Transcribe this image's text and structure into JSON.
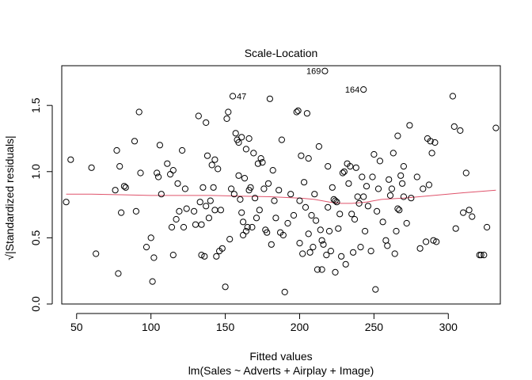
{
  "chart_data": {
    "type": "scatter",
    "title": "Scale-Location",
    "xlabel": "Fitted values",
    "xlabel_sub": "lm(Sales ~ Adverts + Airplay + Image)",
    "ylabel": "√|Standardized residuals|",
    "xlim": [
      40,
      335
    ],
    "ylim": [
      0.0,
      1.8
    ],
    "xticks": [
      50,
      100,
      150,
      200,
      250,
      300
    ],
    "yticks": [
      0.0,
      0.5,
      1.0,
      1.5
    ],
    "xtick_labels": [
      "50",
      "100",
      "150",
      "200",
      "250",
      "300"
    ],
    "ytick_labels": [
      "0.0",
      "0.5",
      "1.0",
      "1.5"
    ],
    "grid": false,
    "point_color": "#000000",
    "smoother_color": "#df536b",
    "labeled_points": [
      {
        "label": "169",
        "x": 217,
        "y": 1.76
      },
      {
        "label": "164",
        "x": 243,
        "y": 1.62
      },
      {
        "label": "47",
        "x": 155,
        "y": 1.57
      }
    ],
    "points": [
      [
        43,
        0.77
      ],
      [
        46,
        1.09
      ],
      [
        60,
        1.03
      ],
      [
        63,
        0.38
      ],
      [
        76,
        0.86
      ],
      [
        77,
        1.16
      ],
      [
        78,
        0.23
      ],
      [
        79,
        1.04
      ],
      [
        80,
        0.69
      ],
      [
        82,
        0.89
      ],
      [
        83,
        0.88
      ],
      [
        89,
        1.23
      ],
      [
        90,
        0.7
      ],
      [
        92,
        1.45
      ],
      [
        93,
        0.99
      ],
      [
        97,
        0.43
      ],
      [
        100,
        0.5
      ],
      [
        101,
        0.17
      ],
      [
        102,
        0.35
      ],
      [
        104,
        0.99
      ],
      [
        105,
        0.96
      ],
      [
        106,
        1.2
      ],
      [
        107,
        0.83
      ],
      [
        111,
        1.06
      ],
      [
        113,
        0.98
      ],
      [
        114,
        0.58
      ],
      [
        115,
        0.37
      ],
      [
        115,
        1.01
      ],
      [
        117,
        0.64
      ],
      [
        118,
        0.91
      ],
      [
        119,
        0.7
      ],
      [
        121,
        1.16
      ],
      [
        122,
        0.58
      ],
      [
        123,
        0.87
      ],
      [
        124,
        0.72
      ],
      [
        129,
        0.7
      ],
      [
        130,
        0.6
      ],
      [
        132,
        1.42
      ],
      [
        133,
        0.77
      ],
      [
        134,
        0.37
      ],
      [
        134,
        0.6
      ],
      [
        135,
        0.88
      ],
      [
        136,
        0.36
      ],
      [
        137,
        1.37
      ],
      [
        137,
        0.74
      ],
      [
        138,
        1.12
      ],
      [
        139,
        0.65
      ],
      [
        140,
        0.78
      ],
      [
        141,
        1.05
      ],
      [
        142,
        0.88
      ],
      [
        143,
        0.71
      ],
      [
        143,
        1.09
      ],
      [
        144,
        0.36
      ],
      [
        145,
        1.02
      ],
      [
        146,
        0.4
      ],
      [
        147,
        0.71
      ],
      [
        148,
        0.42
      ],
      [
        150,
        0.13
      ],
      [
        151,
        1.4
      ],
      [
        152,
        1.45
      ],
      [
        153,
        0.49
      ],
      [
        154,
        0.87
      ],
      [
        155,
        1.57
      ],
      [
        156,
        0.83
      ],
      [
        157,
        1.29
      ],
      [
        158,
        1.24
      ],
      [
        159,
        0.97
      ],
      [
        159,
        1.22
      ],
      [
        160,
        0.79
      ],
      [
        161,
        1.26
      ],
      [
        161,
        0.69
      ],
      [
        162,
        0.52
      ],
      [
        162,
        0.62
      ],
      [
        163,
        0.95
      ],
      [
        164,
        0.55
      ],
      [
        164,
        1.17
      ],
      [
        165,
        0.58
      ],
      [
        166,
        1.25
      ],
      [
        166,
        0.86
      ],
      [
        167,
        0.88
      ],
      [
        168,
        0.58
      ],
      [
        169,
        1.14
      ],
      [
        170,
        0.8
      ],
      [
        171,
        0.65
      ],
      [
        172,
        1.06
      ],
      [
        173,
        0.71
      ],
      [
        174,
        1.1
      ],
      [
        175,
        1.07
      ],
      [
        176,
        0.87
      ],
      [
        177,
        0.56
      ],
      [
        178,
        0.54
      ],
      [
        179,
        0.91
      ],
      [
        180,
        1.55
      ],
      [
        181,
        0.45
      ],
      [
        182,
        1.01
      ],
      [
        183,
        0.78
      ],
      [
        184,
        0.65
      ],
      [
        186,
        0.86
      ],
      [
        187,
        0.54
      ],
      [
        188,
        1.24
      ],
      [
        189,
        0.52
      ],
      [
        190,
        0.09
      ],
      [
        192,
        0.61
      ],
      [
        194,
        0.83
      ],
      [
        196,
        0.67
      ],
      [
        198,
        1.45
      ],
      [
        199,
        1.46
      ],
      [
        200,
        0.78
      ],
      [
        200,
        0.46
      ],
      [
        201,
        1.12
      ],
      [
        202,
        0.38
      ],
      [
        203,
        0.92
      ],
      [
        204,
        0.73
      ],
      [
        205,
        1.44
      ],
      [
        206,
        0.53
      ],
      [
        206,
        1.1
      ],
      [
        207,
        0.39
      ],
      [
        208,
        0.67
      ],
      [
        209,
        0.43
      ],
      [
        210,
        0.83
      ],
      [
        211,
        0.63
      ],
      [
        212,
        0.26
      ],
      [
        213,
        1.19
      ],
      [
        214,
        0.56
      ],
      [
        215,
        0.26
      ],
      [
        215,
        0.48
      ],
      [
        216,
        0.45
      ],
      [
        217,
        1.76
      ],
      [
        218,
        0.37
      ],
      [
        219,
        1.04
      ],
      [
        219,
        0.73
      ],
      [
        220,
        0.55
      ],
      [
        221,
        0.4
      ],
      [
        222,
        0.88
      ],
      [
        223,
        0.79
      ],
      [
        224,
        0.24
      ],
      [
        224,
        0.78
      ],
      [
        225,
        0.77
      ],
      [
        226,
        0.57
      ],
      [
        227,
        0.68
      ],
      [
        228,
        0.36
      ],
      [
        229,
        0.99
      ],
      [
        230,
        1.0
      ],
      [
        231,
        0.3
      ],
      [
        232,
        1.06
      ],
      [
        233,
        0.91
      ],
      [
        234,
        1.04
      ],
      [
        235,
        0.68
      ],
      [
        236,
        0.39
      ],
      [
        237,
        0.64
      ],
      [
        238,
        1.03
      ],
      [
        239,
        0.81
      ],
      [
        240,
        0.76
      ],
      [
        241,
        0.43
      ],
      [
        242,
        0.96
      ],
      [
        243,
        1.62
      ],
      [
        243,
        0.81
      ],
      [
        244,
        0.55
      ],
      [
        245,
        0.89
      ],
      [
        246,
        0.74
      ],
      [
        248,
        0.4
      ],
      [
        249,
        0.96
      ],
      [
        250,
        1.13
      ],
      [
        251,
        0.11
      ],
      [
        252,
        0.7
      ],
      [
        253,
        0.87
      ],
      [
        254,
        1.08
      ],
      [
        256,
        0.62
      ],
      [
        258,
        0.48
      ],
      [
        259,
        0.44
      ],
      [
        260,
        0.94
      ],
      [
        261,
        0.82
      ],
      [
        262,
        0.87
      ],
      [
        263,
        1.14
      ],
      [
        264,
        0.38
      ],
      [
        265,
        0.55
      ],
      [
        266,
        0.72
      ],
      [
        266,
        1.27
      ],
      [
        267,
        0.71
      ],
      [
        268,
        0.97
      ],
      [
        269,
        0.91
      ],
      [
        270,
        1.04
      ],
      [
        270,
        0.81
      ],
      [
        272,
        0.61
      ],
      [
        274,
        1.35
      ],
      [
        275,
        0.8
      ],
      [
        279,
        0.96
      ],
      [
        281,
        0.42
      ],
      [
        283,
        0.87
      ],
      [
        285,
        0.47
      ],
      [
        286,
        1.25
      ],
      [
        287,
        0.9
      ],
      [
        288,
        1.23
      ],
      [
        289,
        1.14
      ],
      [
        290,
        0.48
      ],
      [
        291,
        1.22
      ],
      [
        292,
        0.47
      ],
      [
        303,
        1.57
      ],
      [
        304,
        1.34
      ],
      [
        305,
        0.57
      ],
      [
        308,
        1.31
      ],
      [
        310,
        0.69
      ],
      [
        312,
        0.99
      ],
      [
        314,
        0.71
      ],
      [
        316,
        0.66
      ],
      [
        321,
        0.37
      ],
      [
        322,
        0.37
      ],
      [
        324,
        0.37
      ],
      [
        326,
        0.58
      ],
      [
        332,
        1.33
      ]
    ],
    "smoother": [
      [
        43,
        0.83
      ],
      [
        60,
        0.83
      ],
      [
        80,
        0.825
      ],
      [
        100,
        0.82
      ],
      [
        120,
        0.82
      ],
      [
        140,
        0.82
      ],
      [
        160,
        0.815
      ],
      [
        180,
        0.81
      ],
      [
        200,
        0.8
      ],
      [
        210,
        0.79
      ],
      [
        220,
        0.77
      ],
      [
        228,
        0.76
      ],
      [
        235,
        0.76
      ],
      [
        245,
        0.77
      ],
      [
        255,
        0.79
      ],
      [
        270,
        0.8
      ],
      [
        290,
        0.82
      ],
      [
        310,
        0.84
      ],
      [
        332,
        0.86
      ]
    ]
  }
}
